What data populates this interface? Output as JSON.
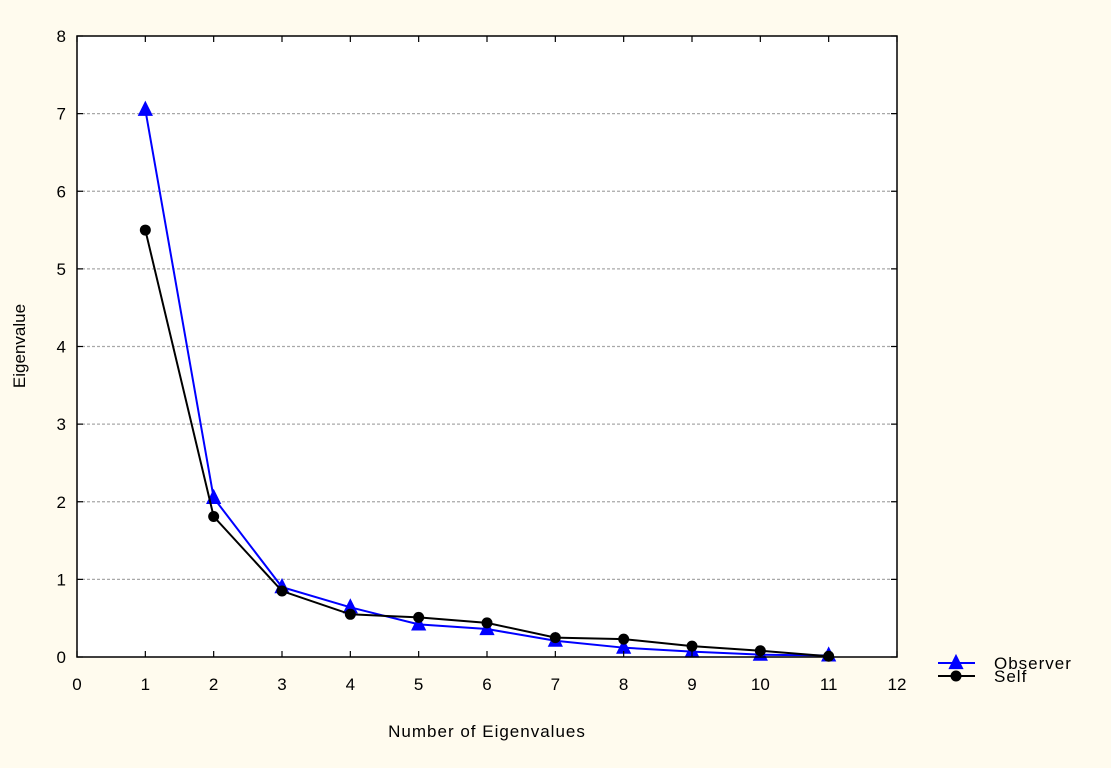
{
  "chart_data": {
    "type": "line",
    "title": "",
    "xlabel": "Number of Eigenvalues",
    "ylabel": "Eigenvalue",
    "xlim": [
      0,
      12
    ],
    "ylim": [
      0,
      8
    ],
    "xticks": [
      0,
      1,
      2,
      3,
      4,
      5,
      6,
      7,
      8,
      9,
      10,
      11,
      12
    ],
    "yticks": [
      0,
      1,
      2,
      3,
      4,
      5,
      6,
      7,
      8
    ],
    "grid": {
      "y": true,
      "x": false,
      "style": "dashed"
    },
    "legend_position": "bottom-right outside",
    "x": [
      1,
      2,
      3,
      4,
      5,
      6,
      7,
      8,
      9,
      10,
      11
    ],
    "series": [
      {
        "name": "Observer",
        "color": "#0000ff",
        "marker": "triangle",
        "values": [
          7.05,
          2.05,
          0.9,
          0.64,
          0.42,
          0.36,
          0.21,
          0.12,
          0.07,
          0.03,
          0.02
        ]
      },
      {
        "name": "Self",
        "color": "#000000",
        "marker": "circle",
        "values": [
          5.5,
          1.81,
          0.85,
          0.55,
          0.51,
          0.44,
          0.25,
          0.23,
          0.14,
          0.08,
          0.01
        ]
      }
    ]
  }
}
